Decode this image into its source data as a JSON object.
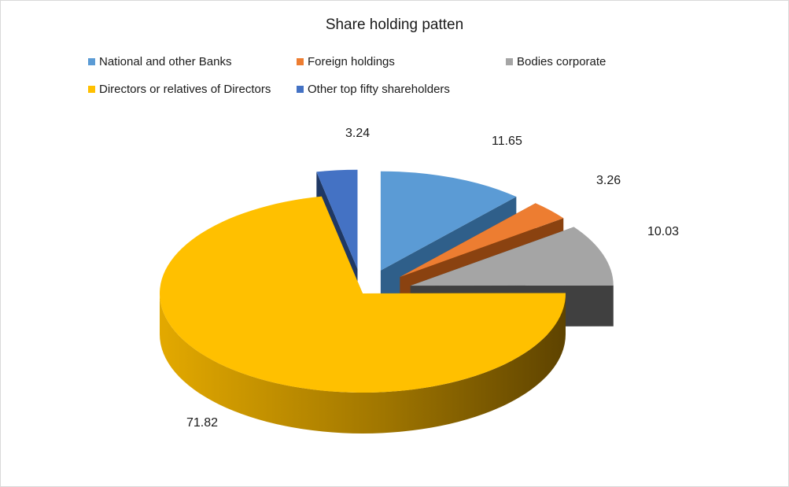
{
  "chart_data": {
    "type": "pie",
    "title": "Share holding patten",
    "legend_position": "top",
    "slices": [
      {
        "name": "National and other Banks",
        "value": 11.65,
        "label": "11.65",
        "color": "#5b9bd5"
      },
      {
        "name": "Foreign holdings",
        "value": 3.26,
        "label": "3.26",
        "color": "#ed7d31"
      },
      {
        "name": "Bodies corporate",
        "value": 10.03,
        "label": "10.03",
        "color": "#a5a5a5"
      },
      {
        "name": "Directors or relatives of Directors",
        "value": 71.82,
        "label": "71.82",
        "color": "#ffc000"
      },
      {
        "name": "Other top fifty shareholders",
        "value": 3.24,
        "label": "3.24",
        "color": "#4472c4"
      }
    ]
  }
}
